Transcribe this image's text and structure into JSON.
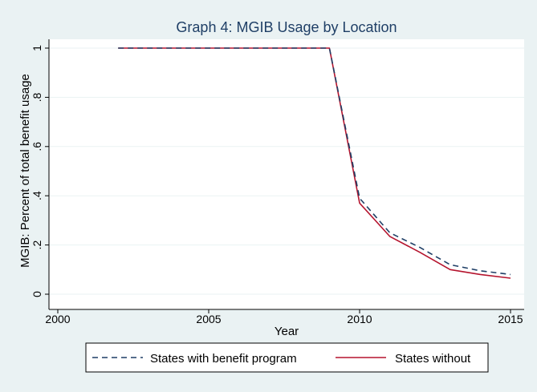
{
  "chart_data": {
    "type": "line",
    "title": "Graph 4: MGIB Usage by Location",
    "xlabel": "Year",
    "ylabel": "MGIB: Percent of total benefit usage",
    "xlim": [
      2000,
      2015
    ],
    "ylim": [
      0,
      1
    ],
    "xticks": [
      2000,
      2005,
      2010,
      2015
    ],
    "xtick_labels": [
      "2000",
      "2005",
      "2010",
      "2015"
    ],
    "yticks": [
      0,
      0.2,
      0.4,
      0.6,
      0.8,
      1
    ],
    "ytick_labels": [
      "0",
      ".2",
      ".4",
      ".6",
      ".8",
      "1"
    ],
    "grid": "horizontal",
    "legend_position": "bottom",
    "series": [
      {
        "name": "States with benefit program",
        "style": "dashed",
        "color": "#1f3f66",
        "x": [
          2002,
          2003,
          2004,
          2005,
          2006,
          2007,
          2008,
          2009,
          2010,
          2011,
          2012,
          2013,
          2014,
          2015
        ],
        "y": [
          1,
          1,
          1,
          1,
          1,
          1,
          1,
          1,
          0.39,
          0.25,
          0.19,
          0.12,
          0.095,
          0.08
        ]
      },
      {
        "name": "States without",
        "style": "solid",
        "color": "#b5142e",
        "x": [
          2002,
          2003,
          2004,
          2005,
          2006,
          2007,
          2008,
          2009,
          2010,
          2011,
          2012,
          2013,
          2014,
          2015
        ],
        "y": [
          1,
          1,
          1,
          1,
          1,
          1,
          1,
          1,
          0.37,
          0.235,
          0.17,
          0.1,
          0.08,
          0.065
        ]
      }
    ]
  }
}
